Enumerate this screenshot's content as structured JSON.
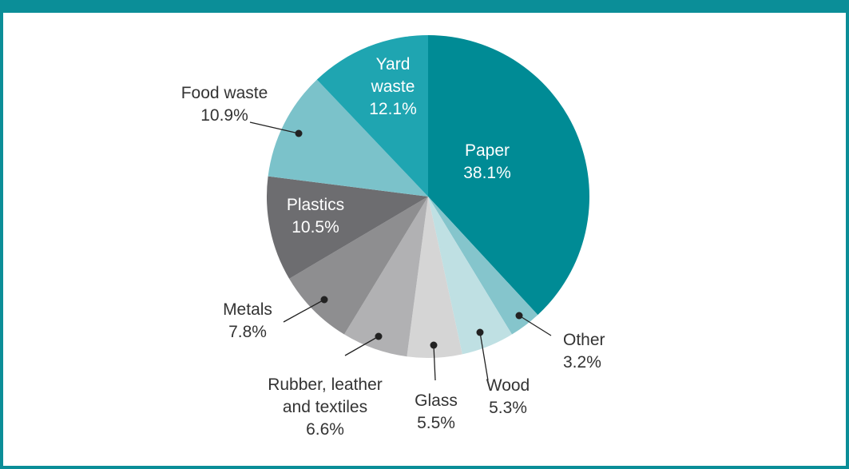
{
  "colors": {
    "frame": "#0b8e98"
  },
  "chart_data": {
    "type": "pie",
    "title": "",
    "slices": [
      {
        "label_lines": [
          "Paper"
        ],
        "value": 38.1,
        "value_label": "38.1%",
        "color": "#008b95",
        "label_inside": true
      },
      {
        "label_lines": [
          "Other"
        ],
        "value": 3.2,
        "value_label": "3.2%",
        "color": "#85c5cc",
        "label_inside": false
      },
      {
        "label_lines": [
          "Wood"
        ],
        "value": 5.3,
        "value_label": "5.3%",
        "color": "#bfe0e3",
        "label_inside": false
      },
      {
        "label_lines": [
          "Glass"
        ],
        "value": 5.5,
        "value_label": "5.5%",
        "color": "#d5d5d5",
        "label_inside": false
      },
      {
        "label_lines": [
          "Rubber, leather",
          "and textiles"
        ],
        "value": 6.6,
        "value_label": "6.6%",
        "color": "#b1b1b3",
        "label_inside": false
      },
      {
        "label_lines": [
          "Metals"
        ],
        "value": 7.8,
        "value_label": "7.8%",
        "color": "#8e8e90",
        "label_inside": false
      },
      {
        "label_lines": [
          "Plastics"
        ],
        "value": 10.5,
        "value_label": "10.5%",
        "color": "#6d6d70",
        "label_inside": true
      },
      {
        "label_lines": [
          "Food waste"
        ],
        "value": 10.9,
        "value_label": "10.9%",
        "color": "#7bc2ca",
        "label_inside": false
      },
      {
        "label_lines": [
          "Yard",
          "waste"
        ],
        "value": 12.1,
        "value_label": "12.1%",
        "color": "#1fa5b1",
        "label_inside": true
      }
    ]
  }
}
